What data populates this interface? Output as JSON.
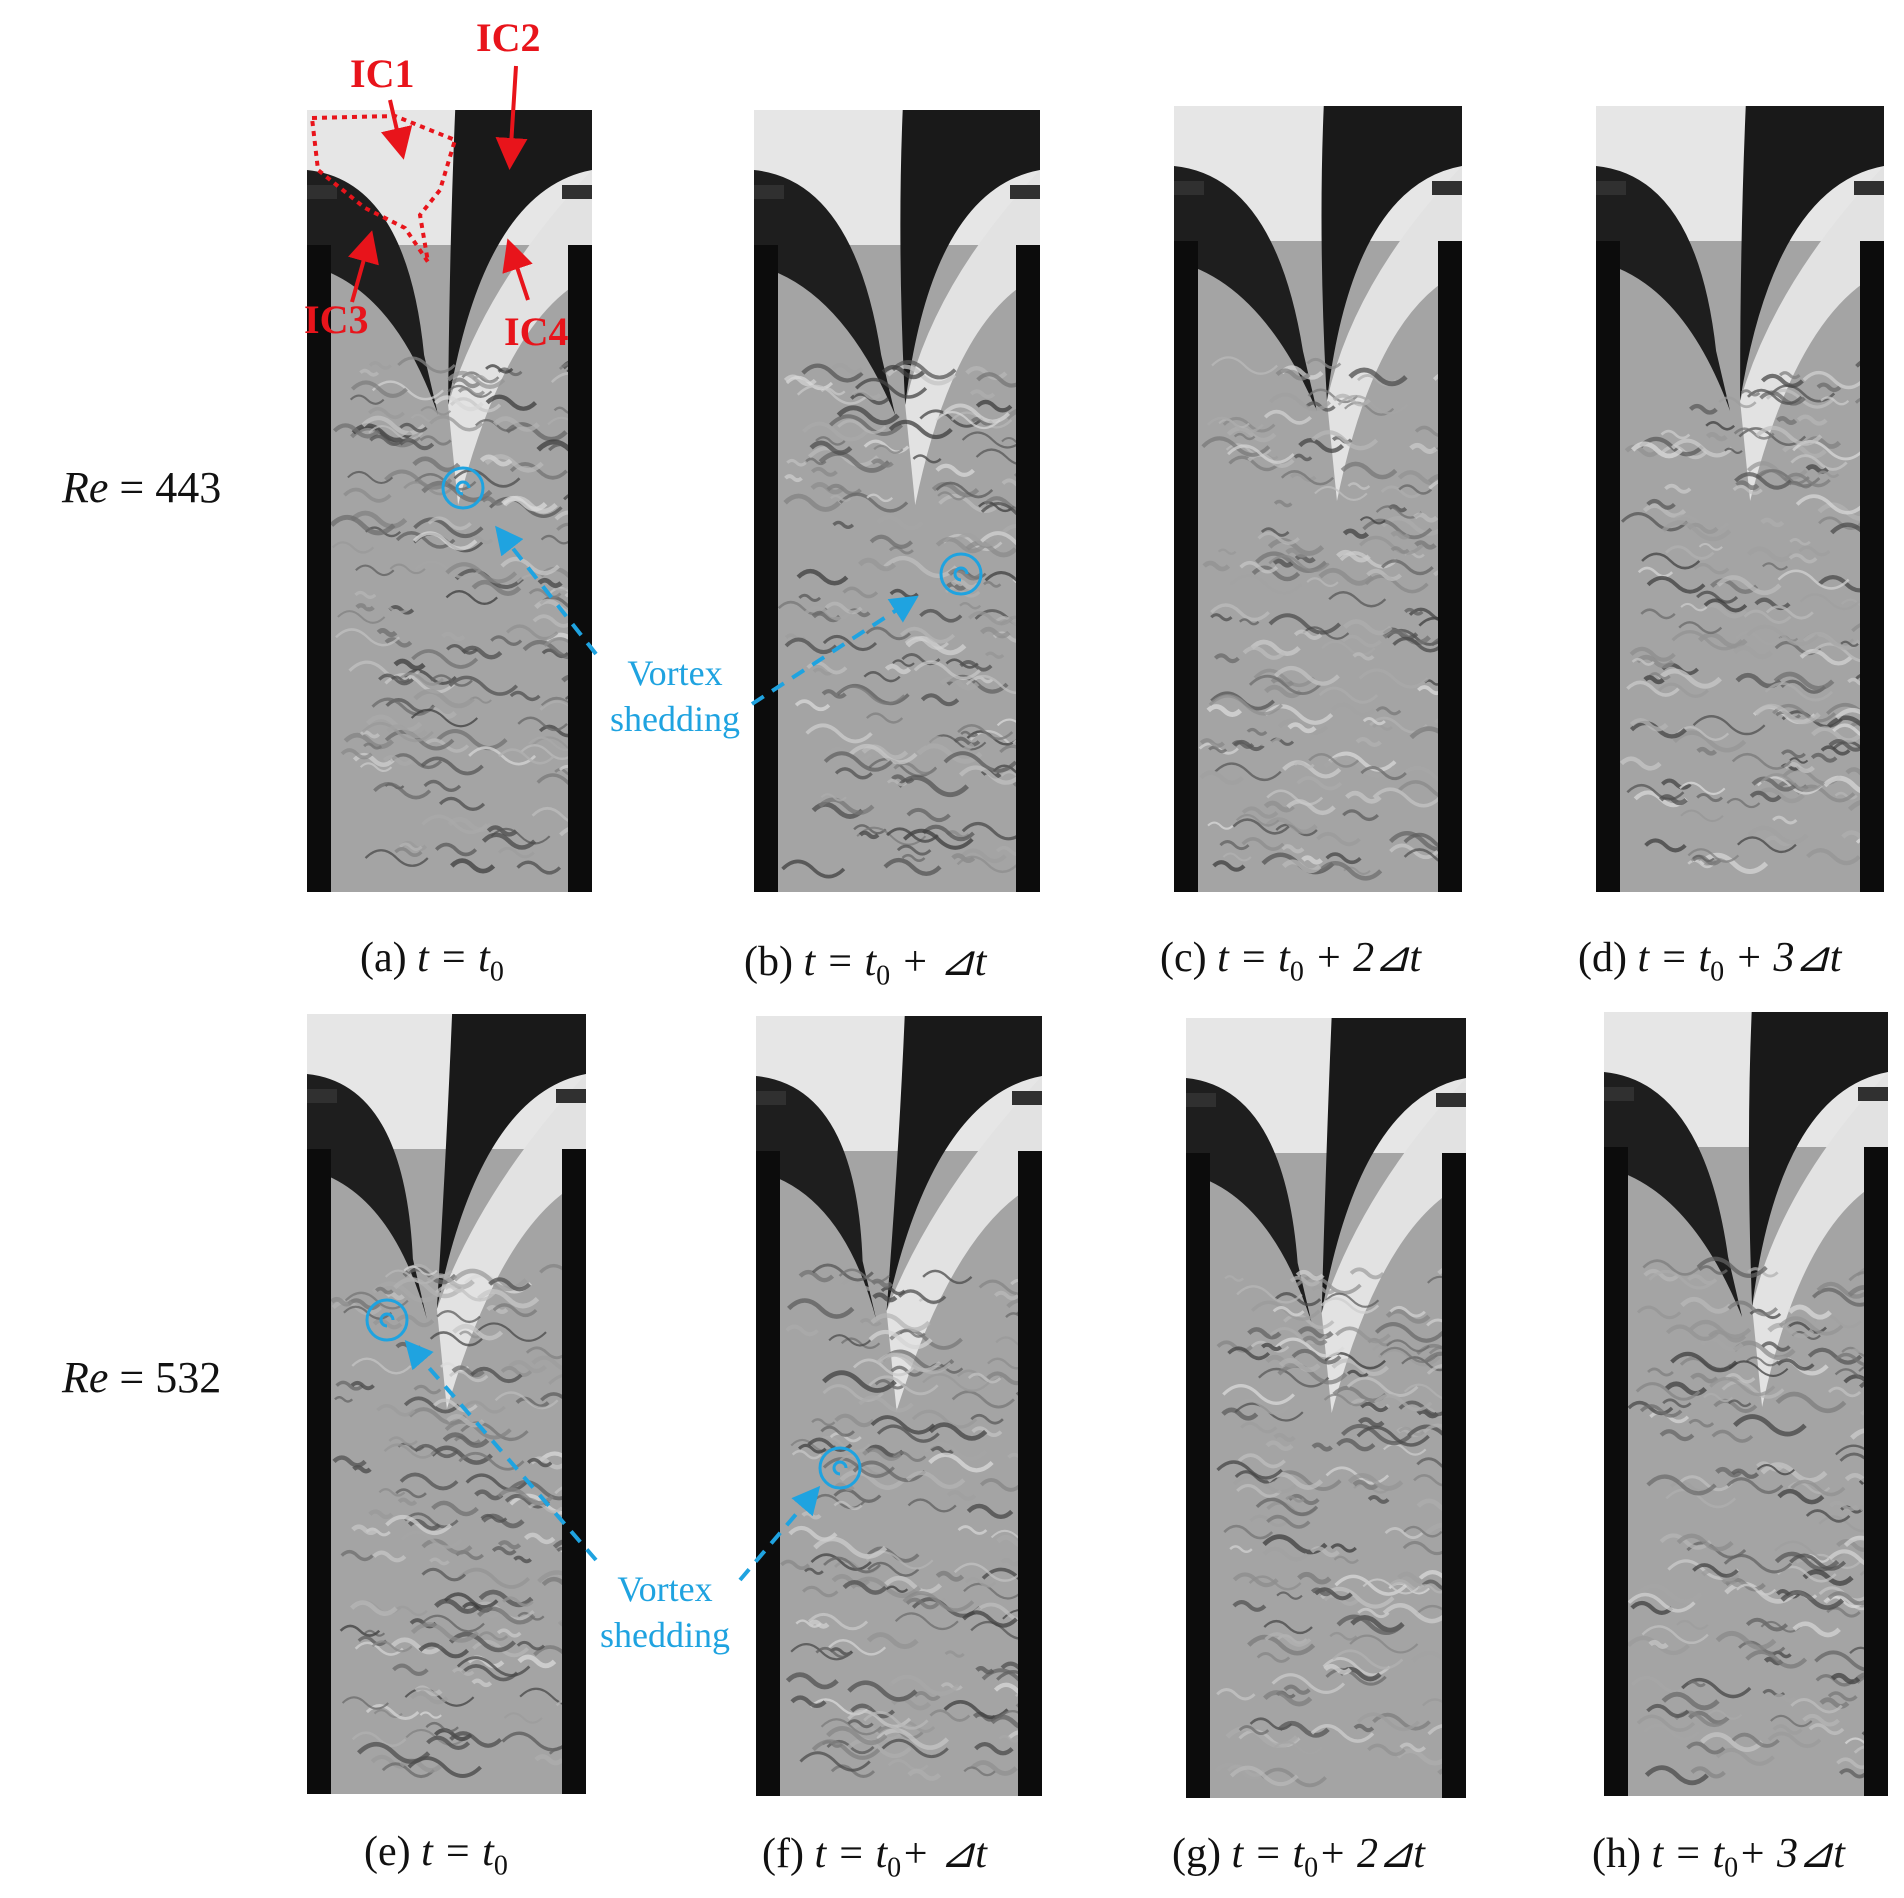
{
  "rows": [
    {
      "re_symbol": "Re",
      "re_eq": " = ",
      "re_value": "443"
    },
    {
      "re_symbol": "Re",
      "re_eq": " = ",
      "re_value": "532"
    }
  ],
  "panels": [
    {
      "id": "a",
      "letter": "(a) ",
      "time": "t = t",
      "sub": "0",
      "suffix": ""
    },
    {
      "id": "b",
      "letter": "(b) ",
      "time": "t = t",
      "sub": "0",
      "suffix": " + ⊿t"
    },
    {
      "id": "c",
      "letter": "(c) ",
      "time": "t = t",
      "sub": "0",
      "suffix": " + 2⊿t"
    },
    {
      "id": "d",
      "letter": "(d) ",
      "time": "t = t",
      "sub": "0",
      "suffix": " + 3⊿t"
    },
    {
      "id": "e",
      "letter": "(e) ",
      "time": "t = t",
      "sub": "0",
      "suffix": ""
    },
    {
      "id": "f",
      "letter": "(f) ",
      "time": "t = t",
      "sub": "0",
      "suffix": "+ ⊿t"
    },
    {
      "id": "g",
      "letter": "(g) ",
      "time": "t = t",
      "sub": "0",
      "suffix": "+ 2⊿t"
    },
    {
      "id": "h",
      "letter": "(h) ",
      "time": "t = t",
      "sub": "0",
      "suffix": "+ 3⊿t"
    }
  ],
  "annotations": {
    "ic1": "IC1",
    "ic2": "IC2",
    "ic3": "IC3",
    "ic4": "IC4",
    "vortex_line1": "Vortex",
    "vortex_line2": "shedding"
  },
  "colors": {
    "annotation_red": "#e8141b",
    "annotation_blue": "#1fa3e0"
  }
}
